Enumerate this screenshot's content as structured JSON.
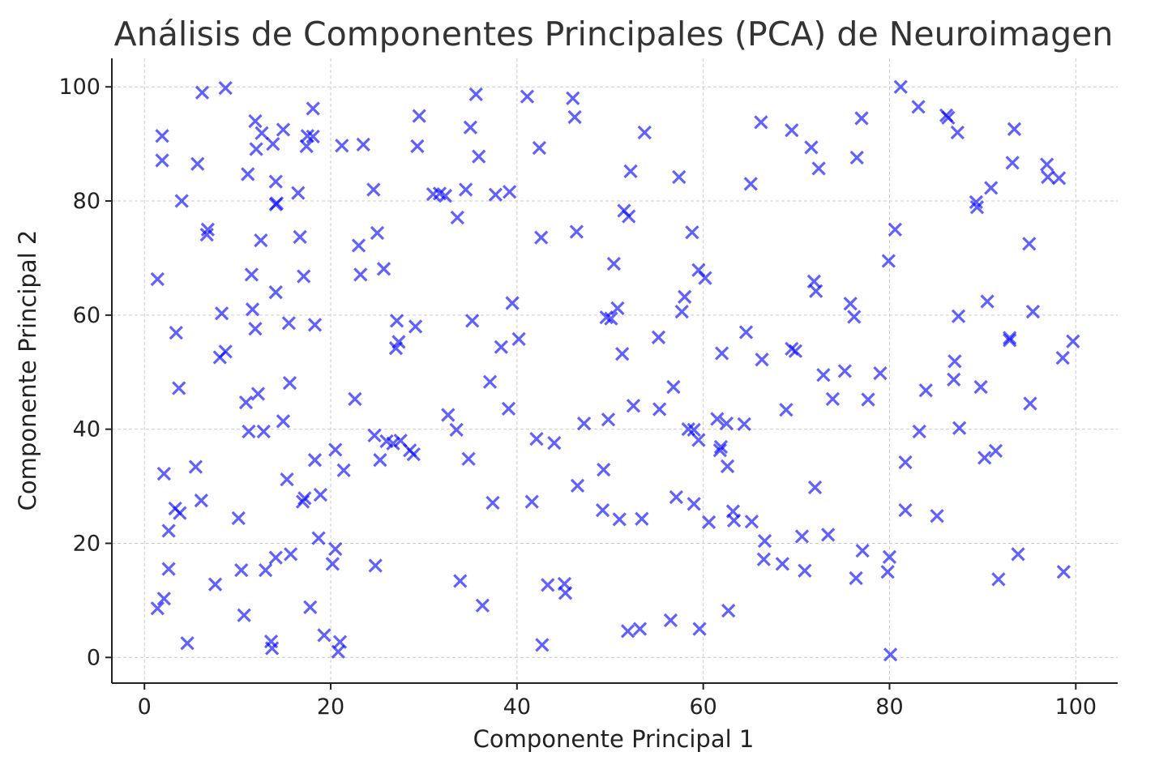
{
  "chart_data": {
    "type": "scatter",
    "title": "Análisis de Componentes Principales (PCA) de Neuroimagen",
    "xlabel": "Componente Principal 1",
    "ylabel": "Componente Principal 2",
    "xlim": [
      -3.5,
      104.5
    ],
    "ylim": [
      -4.5,
      105
    ],
    "xticks": [
      0,
      20,
      40,
      60,
      80,
      100
    ],
    "yticks": [
      0,
      20,
      40,
      60,
      80,
      100
    ],
    "grid": true,
    "marker": "x",
    "color": "#0000ff",
    "points": [
      [
        1.4,
        66.3
      ],
      [
        1.9,
        91.4
      ],
      [
        1.9,
        87.1
      ],
      [
        1.4,
        8.6
      ],
      [
        2.1,
        10.3
      ],
      [
        2.6,
        22.2
      ],
      [
        2.6,
        15.5
      ],
      [
        2.1,
        32.2
      ],
      [
        3.3,
        26.1
      ],
      [
        3.4,
        56.9
      ],
      [
        3.7,
        47.2
      ],
      [
        3.8,
        25.3
      ],
      [
        4.0,
        80.0
      ],
      [
        4.6,
        2.5
      ],
      [
        5.5,
        33.4
      ],
      [
        5.7,
        86.5
      ],
      [
        6.1,
        27.5
      ],
      [
        6.2,
        99.0
      ],
      [
        6.7,
        74.1
      ],
      [
        6.8,
        75.0
      ],
      [
        7.6,
        12.8
      ],
      [
        8.1,
        52.6
      ],
      [
        8.3,
        60.3
      ],
      [
        8.7,
        53.6
      ],
      [
        8.7,
        99.8
      ],
      [
        10.1,
        24.4
      ],
      [
        10.4,
        15.3
      ],
      [
        10.7,
        7.4
      ],
      [
        10.9,
        44.7
      ],
      [
        11.1,
        84.7
      ],
      [
        11.2,
        39.6
      ],
      [
        11.5,
        67.1
      ],
      [
        11.6,
        61.0
      ],
      [
        11.9,
        94.0
      ],
      [
        11.9,
        57.6
      ],
      [
        12.0,
        89.1
      ],
      [
        12.2,
        46.2
      ],
      [
        12.5,
        73.1
      ],
      [
        12.6,
        91.9
      ],
      [
        12.8,
        39.6
      ],
      [
        13.0,
        15.3
      ],
      [
        13.6,
        2.8
      ],
      [
        13.7,
        1.6
      ],
      [
        13.8,
        90.0
      ],
      [
        14.1,
        64.0
      ],
      [
        14.1,
        83.4
      ],
      [
        14.1,
        79.4
      ],
      [
        14.2,
        79.6
      ],
      [
        14.1,
        17.5
      ],
      [
        14.9,
        92.5
      ],
      [
        14.9,
        41.4
      ],
      [
        15.3,
        31.2
      ],
      [
        15.5,
        58.6
      ],
      [
        15.6,
        48.1
      ],
      [
        15.7,
        18.1
      ],
      [
        16.5,
        81.4
      ],
      [
        16.7,
        73.7
      ],
      [
        17.0,
        27.3
      ],
      [
        17.1,
        66.8
      ],
      [
        17.2,
        27.9
      ],
      [
        17.4,
        89.6
      ],
      [
        17.5,
        91.4
      ],
      [
        17.8,
        8.8
      ],
      [
        18.1,
        96.2
      ],
      [
        18.1,
        91.3
      ],
      [
        18.3,
        34.6
      ],
      [
        18.3,
        58.3
      ],
      [
        18.7,
        20.9
      ],
      [
        18.9,
        28.5
      ],
      [
        19.3,
        3.9
      ],
      [
        20.2,
        16.4
      ],
      [
        20.5,
        36.4
      ],
      [
        20.5,
        19.0
      ],
      [
        20.8,
        1.0
      ],
      [
        21.0,
        2.7
      ],
      [
        21.2,
        89.7
      ],
      [
        21.4,
        32.8
      ],
      [
        22.6,
        45.3
      ],
      [
        23.0,
        72.2
      ],
      [
        23.2,
        67.1
      ],
      [
        23.5,
        89.9
      ],
      [
        24.6,
        82.0
      ],
      [
        24.7,
        38.9
      ],
      [
        24.8,
        16.1
      ],
      [
        25.0,
        74.4
      ],
      [
        25.3,
        34.6
      ],
      [
        25.7,
        68.1
      ],
      [
        26.0,
        37.9
      ],
      [
        26.7,
        37.5
      ],
      [
        27.0,
        54.2
      ],
      [
        27.1,
        59.0
      ],
      [
        27.3,
        55.3
      ],
      [
        27.5,
        38.0
      ],
      [
        28.5,
        36.3
      ],
      [
        28.9,
        35.6
      ],
      [
        29.1,
        58.0
      ],
      [
        29.3,
        89.6
      ],
      [
        29.5,
        94.9
      ],
      [
        31.0,
        81.2
      ],
      [
        31.7,
        81.3
      ],
      [
        32.3,
        80.9
      ],
      [
        32.6,
        42.5
      ],
      [
        33.5,
        39.9
      ],
      [
        33.6,
        77.1
      ],
      [
        33.9,
        13.4
      ],
      [
        34.5,
        82.0
      ],
      [
        34.8,
        34.8
      ],
      [
        35.0,
        92.9
      ],
      [
        35.2,
        59.0
      ],
      [
        35.6,
        98.7
      ],
      [
        35.9,
        87.8
      ],
      [
        36.3,
        9.1
      ],
      [
        37.1,
        48.3
      ],
      [
        37.4,
        27.1
      ],
      [
        37.7,
        81.1
      ],
      [
        38.3,
        54.4
      ],
      [
        39.1,
        43.6
      ],
      [
        39.2,
        81.6
      ],
      [
        39.5,
        62.1
      ],
      [
        40.2,
        55.8
      ],
      [
        41.1,
        98.3
      ],
      [
        41.6,
        27.3
      ],
      [
        42.1,
        38.3
      ],
      [
        42.4,
        89.3
      ],
      [
        42.6,
        73.6
      ],
      [
        42.7,
        2.2
      ],
      [
        43.3,
        12.7
      ],
      [
        44.0,
        37.6
      ],
      [
        45.1,
        12.9
      ],
      [
        45.2,
        11.3
      ],
      [
        46.0,
        98.0
      ],
      [
        46.2,
        94.7
      ],
      [
        46.4,
        74.6
      ],
      [
        46.5,
        30.1
      ],
      [
        47.2,
        41.0
      ],
      [
        49.2,
        25.8
      ],
      [
        49.3,
        32.9
      ],
      [
        49.6,
        59.6
      ],
      [
        49.8,
        41.7
      ],
      [
        50.1,
        59.4
      ],
      [
        50.4,
        69.0
      ],
      [
        50.8,
        61.2
      ],
      [
        51.0,
        24.2
      ],
      [
        51.3,
        53.2
      ],
      [
        51.5,
        78.3
      ],
      [
        51.9,
        4.6
      ],
      [
        52.0,
        77.3
      ],
      [
        52.2,
        85.2
      ],
      [
        52.5,
        44.1
      ],
      [
        53.2,
        5.0
      ],
      [
        53.4,
        24.3
      ],
      [
        53.7,
        92.0
      ],
      [
        55.2,
        56.1
      ],
      [
        55.3,
        43.5
      ],
      [
        56.5,
        6.5
      ],
      [
        56.8,
        47.4
      ],
      [
        57.1,
        28.1
      ],
      [
        57.4,
        84.2
      ],
      [
        57.7,
        60.6
      ],
      [
        58.0,
        63.2
      ],
      [
        58.4,
        40.0
      ],
      [
        58.8,
        74.5
      ],
      [
        59.0,
        39.9
      ],
      [
        59.0,
        26.9
      ],
      [
        59.5,
        38.1
      ],
      [
        59.5,
        67.9
      ],
      [
        59.6,
        5.0
      ],
      [
        60.2,
        66.5
      ],
      [
        60.6,
        23.7
      ],
      [
        61.5,
        41.8
      ],
      [
        61.8,
        36.3
      ],
      [
        61.9,
        36.9
      ],
      [
        62.0,
        53.3
      ],
      [
        62.5,
        41.0
      ],
      [
        62.6,
        33.5
      ],
      [
        62.7,
        8.2
      ],
      [
        63.2,
        25.6
      ],
      [
        63.3,
        24.0
      ],
      [
        64.4,
        40.9
      ],
      [
        64.6,
        57.0
      ],
      [
        65.1,
        83.0
      ],
      [
        65.2,
        23.8
      ],
      [
        66.2,
        93.8
      ],
      [
        66.3,
        52.2
      ],
      [
        66.5,
        17.2
      ],
      [
        66.6,
        20.4
      ],
      [
        68.5,
        16.4
      ],
      [
        68.9,
        43.4
      ],
      [
        69.5,
        92.4
      ],
      [
        69.5,
        54.1
      ],
      [
        69.9,
        53.7
      ],
      [
        70.6,
        21.2
      ],
      [
        70.9,
        15.2
      ],
      [
        71.6,
        89.4
      ],
      [
        71.9,
        65.9
      ],
      [
        72.0,
        29.8
      ],
      [
        72.1,
        64.2
      ],
      [
        72.4,
        85.7
      ],
      [
        72.9,
        49.5
      ],
      [
        73.4,
        21.5
      ],
      [
        73.9,
        45.3
      ],
      [
        75.2,
        50.2
      ],
      [
        75.8,
        62.0
      ],
      [
        76.2,
        59.7
      ],
      [
        76.4,
        13.9
      ],
      [
        76.5,
        87.6
      ],
      [
        77.0,
        94.5
      ],
      [
        77.1,
        18.7
      ],
      [
        77.7,
        45.2
      ],
      [
        79.0,
        49.8
      ],
      [
        79.8,
        15.0
      ],
      [
        79.9,
        69.5
      ],
      [
        80.0,
        17.6
      ],
      [
        80.1,
        0.5
      ],
      [
        80.6,
        75.0
      ],
      [
        81.2,
        100.0
      ],
      [
        81.7,
        34.2
      ],
      [
        81.7,
        25.8
      ],
      [
        83.1,
        96.5
      ],
      [
        83.2,
        39.6
      ],
      [
        83.9,
        46.8
      ],
      [
        85.1,
        24.8
      ],
      [
        86.1,
        95.0
      ],
      [
        86.3,
        94.6
      ],
      [
        86.9,
        48.7
      ],
      [
        87.0,
        51.9
      ],
      [
        87.3,
        92.0
      ],
      [
        87.4,
        59.8
      ],
      [
        87.5,
        40.2
      ],
      [
        89.3,
        79.8
      ],
      [
        89.4,
        78.9
      ],
      [
        89.8,
        47.4
      ],
      [
        90.2,
        35.0
      ],
      [
        90.5,
        62.4
      ],
      [
        90.9,
        82.3
      ],
      [
        91.4,
        36.2
      ],
      [
        91.7,
        13.7
      ],
      [
        92.9,
        56.0
      ],
      [
        92.9,
        55.6
      ],
      [
        93.2,
        86.7
      ],
      [
        93.4,
        92.6
      ],
      [
        93.8,
        18.1
      ],
      [
        95.0,
        72.5
      ],
      [
        95.1,
        44.5
      ],
      [
        95.4,
        60.6
      ],
      [
        96.9,
        86.4
      ],
      [
        97.0,
        84.2
      ],
      [
        98.2,
        84.0
      ],
      [
        98.6,
        52.5
      ],
      [
        98.7,
        15.0
      ],
      [
        99.7,
        55.4
      ]
    ]
  }
}
